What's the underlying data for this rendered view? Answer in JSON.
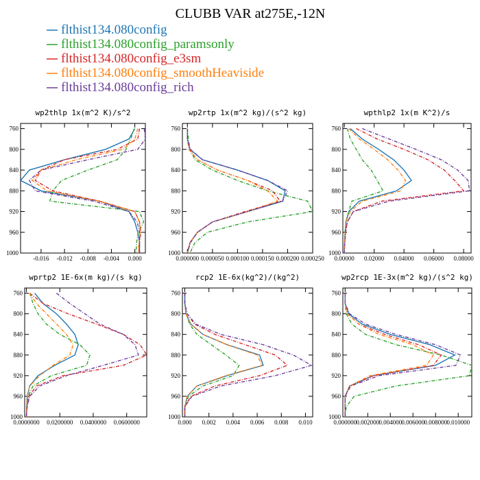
{
  "title": "CLUBB VAR at275E,-12N",
  "legend": [
    {
      "label": "flthist134.080config",
      "color": "#1f77b4",
      "dashed": false
    },
    {
      "label": "flthist134.080config_paramsonly",
      "color": "#2ca02c",
      "dashed": true
    },
    {
      "label": "flthist134.080config_e3sm",
      "color": "#d62728",
      "dashed": true
    },
    {
      "label": "flthist134.080config_smoothHeaviside",
      "color": "#ff7f0e",
      "dashed": true
    },
    {
      "label": "flthist134.080config_rich",
      "color": "#6a3d9a",
      "dashed": true
    }
  ],
  "chart_data": [
    {
      "type": "line",
      "title": "wp2thlp  1x(m^2 K)/s^2",
      "xlim": [
        -0.0195,
        0.0018
      ],
      "ylim": [
        1000,
        750
      ],
      "yticks": [
        760,
        800,
        840,
        880,
        920,
        960,
        1000
      ],
      "xticks": [
        -0.016,
        -0.012,
        -0.008,
        -0.004,
        0.0
      ],
      "xtick_labels": [
        "-0.016",
        "-0.012",
        "-0.008",
        "-0.004",
        "0.000"
      ],
      "y": [
        760,
        780,
        800,
        820,
        840,
        860,
        880,
        900,
        920,
        940,
        960,
        980,
        1000
      ],
      "series": [
        {
          "values": [
            0.0,
            -0.001,
            -0.005,
            -0.012,
            -0.018,
            -0.0195,
            -0.016,
            -0.006,
            -0.001,
            0.0,
            0.0005,
            0.0008,
            0.0008
          ]
        },
        {
          "values": [
            -0.0001,
            -0.0007,
            -0.0015,
            -0.003,
            -0.008,
            -0.0125,
            -0.014,
            -0.0145,
            0.0008,
            0.0015,
            0.0006,
            0.0003,
            0.0002
          ]
        },
        {
          "values": [
            0.0008,
            0.0005,
            -0.003,
            -0.012,
            -0.016,
            -0.017,
            -0.014,
            -0.006,
            0.0,
            0.0008,
            0.001,
            0.0008,
            0.0007
          ]
        },
        {
          "values": [
            0.0005,
            0.0,
            -0.002,
            -0.01,
            -0.016,
            -0.0175,
            -0.015,
            -0.006,
            0.0,
            0.0008,
            0.0009,
            0.0007,
            0.0006
          ]
        },
        {
          "values": [
            0.0016,
            0.0018,
            0.0005,
            -0.008,
            -0.016,
            -0.018,
            -0.017,
            -0.007,
            -0.001,
            0.0004,
            0.0008,
            0.0008,
            0.0008
          ]
        }
      ]
    },
    {
      "type": "line",
      "title": "wp2rtp  1x(m^2 kg)/(s^2 kg)",
      "xlim": [
        -1e-05,
        0.00025
      ],
      "ylim": [
        1000,
        750
      ],
      "yticks": [
        760,
        800,
        840,
        880,
        920,
        960,
        1000
      ],
      "xticks": [
        0.0,
        5e-05,
        0.0001,
        0.00015,
        0.0002,
        0.00025
      ],
      "xtick_labels": [
        "0.000000",
        "0.000050",
        "0.000100",
        "0.000150",
        "0.000200",
        "0.000250"
      ],
      "y": [
        760,
        780,
        800,
        820,
        840,
        860,
        880,
        900,
        920,
        940,
        960,
        980,
        1000
      ],
      "series": [
        {
          "values": [
            0.0,
            0.0,
            5e-06,
            3e-05,
            0.0001,
            0.00016,
            0.000195,
            0.00019,
            0.00012,
            5e-05,
            2e-05,
            5e-06,
            0.0
          ]
        },
        {
          "values": [
            0.0,
            2e-06,
            5e-06,
            1.5e-05,
            5e-05,
            0.0001,
            0.00016,
            0.00024,
            0.00025,
            0.00012,
            4e-05,
            1.5e-05,
            5e-06
          ]
        },
        {
          "values": [
            0.0,
            0.0,
            3e-06,
            2e-05,
            6e-05,
            0.00012,
            0.00017,
            0.000185,
            0.000115,
            5e-05,
            2e-05,
            5e-06,
            0.0
          ]
        },
        {
          "values": [
            0.0,
            0.0,
            4e-06,
            2e-05,
            6e-05,
            0.00012,
            0.00016,
            0.00018,
            0.00012,
            5e-05,
            2e-05,
            5e-06,
            0.0
          ]
        },
        {
          "values": [
            0.0,
            0.0,
            6e-06,
            3e-05,
            0.0001,
            0.00016,
            0.0002,
            0.00019,
            0.00012,
            5e-05,
            2e-05,
            6e-06,
            0.0
          ]
        }
      ]
    },
    {
      "type": "line",
      "title": "wpthlp2  1x(m K^2)/s",
      "xlim": [
        -0.001,
        0.085
      ],
      "ylim": [
        1000,
        750
      ],
      "yticks": [
        760,
        800,
        840,
        880,
        920,
        960,
        1000
      ],
      "xticks": [
        0.0,
        0.02,
        0.04,
        0.06,
        0.08
      ],
      "xtick_labels": [
        "0.00000",
        "0.02000",
        "0.04000",
        "0.06000",
        "0.08000"
      ],
      "y": [
        760,
        780,
        800,
        820,
        840,
        860,
        880,
        900,
        920,
        940,
        960,
        980,
        1000
      ],
      "series": [
        {
          "values": [
            0.004,
            0.012,
            0.023,
            0.033,
            0.04,
            0.045,
            0.035,
            0.01,
            0.003,
            0.001,
            0.0005,
            0.0002,
            0.0
          ]
        },
        {
          "values": [
            0.002,
            0.004,
            0.008,
            0.012,
            0.018,
            0.022,
            0.026,
            0.005,
            0.003,
            0.001,
            0.0005,
            0.0002,
            0.0
          ]
        },
        {
          "values": [
            0.008,
            0.022,
            0.04,
            0.056,
            0.067,
            0.074,
            0.08,
            0.025,
            0.006,
            0.002,
            0.0008,
            0.0003,
            0.0
          ]
        },
        {
          "values": [
            0.003,
            0.01,
            0.02,
            0.029,
            0.036,
            0.041,
            0.038,
            0.012,
            0.004,
            0.001,
            0.0005,
            0.0002,
            0.0
          ]
        },
        {
          "values": [
            0.012,
            0.03,
            0.048,
            0.065,
            0.076,
            0.083,
            0.084,
            0.03,
            0.006,
            0.002,
            0.0008,
            0.0003,
            0.0
          ]
        }
      ]
    },
    {
      "type": "line",
      "title": "wprtp2  1E-6x(m kg)/(s kg)",
      "xlim": [
        -0.001,
        0.072
      ],
      "ylim": [
        1000,
        750
      ],
      "yticks": [
        760,
        800,
        840,
        880,
        920,
        960,
        1000
      ],
      "xticks": [
        0.0,
        0.02,
        0.04,
        0.06
      ],
      "xtick_labels": [
        "0.0000000",
        "0.0200000",
        "0.0400000",
        "0.0600000"
      ],
      "y": [
        760,
        780,
        800,
        820,
        840,
        860,
        880,
        900,
        920,
        940,
        960,
        980,
        1000
      ],
      "series": [
        {
          "values": [
            0.005,
            0.01,
            0.018,
            0.024,
            0.029,
            0.031,
            0.029,
            0.017,
            0.007,
            0.002,
            0.0005,
            0.0002,
            0.0
          ]
        },
        {
          "values": [
            0.002,
            0.004,
            0.007,
            0.012,
            0.02,
            0.032,
            0.038,
            0.036,
            0.015,
            0.004,
            0.001,
            0.0003,
            0.0
          ]
        },
        {
          "values": [
            0.002,
            0.01,
            0.025,
            0.042,
            0.058,
            0.068,
            0.072,
            0.058,
            0.022,
            0.006,
            0.0015,
            0.0004,
            0.0
          ]
        },
        {
          "values": [
            0.002,
            0.006,
            0.012,
            0.018,
            0.024,
            0.028,
            0.026,
            0.016,
            0.008,
            0.002,
            0.0006,
            0.0002,
            0.0
          ]
        },
        {
          "values": [
            0.018,
            0.026,
            0.035,
            0.044,
            0.058,
            0.065,
            0.067,
            0.046,
            0.024,
            0.008,
            0.002,
            0.0005,
            0.0
          ]
        }
      ]
    },
    {
      "type": "line",
      "title": "rcp2  1E-6x(kg^2)/(kg^2)",
      "xlim": [
        -0.0002,
        0.0106
      ],
      "ylim": [
        1000,
        750
      ],
      "yticks": [
        760,
        800,
        840,
        880,
        920,
        960,
        1000
      ],
      "xticks": [
        0.0,
        0.002,
        0.004,
        0.006,
        0.008,
        0.01
      ],
      "xtick_labels": [
        "0.000",
        "0.002",
        "0.004",
        "0.006",
        "0.008",
        "0.010"
      ],
      "y": [
        760,
        780,
        800,
        820,
        840,
        860,
        880,
        900,
        920,
        940,
        960,
        980,
        1000
      ],
      "series": [
        {
          "values": [
            0.0,
            0.0,
            0.0001,
            0.0005,
            0.0015,
            0.0035,
            0.0062,
            0.0065,
            0.0035,
            0.001,
            0.0002,
            0.0,
            0.0
          ]
        },
        {
          "values": [
            0.0,
            0.0,
            0.0001,
            0.0004,
            0.001,
            0.0022,
            0.0034,
            0.0045,
            0.004,
            0.0015,
            0.0003,
            0.0,
            0.0
          ]
        },
        {
          "values": [
            0.0,
            0.0,
            0.0002,
            0.0008,
            0.0025,
            0.005,
            0.0075,
            0.0085,
            0.0062,
            0.0025,
            0.0005,
            0.0,
            0.0
          ]
        },
        {
          "values": [
            0.0,
            0.0,
            0.0001,
            0.0005,
            0.0015,
            0.0035,
            0.006,
            0.0064,
            0.0034,
            0.001,
            0.0002,
            0.0,
            0.0
          ]
        },
        {
          "values": [
            0.0,
            0.0,
            0.0002,
            0.0009,
            0.003,
            0.0065,
            0.009,
            0.0105,
            0.0075,
            0.003,
            0.0006,
            0.0,
            0.0
          ]
        }
      ]
    },
    {
      "type": "line",
      "title": "wp2rcp  1E-3x(m^2 kg)/(s^2 kg)",
      "xlim": [
        -0.0002,
        0.0112
      ],
      "ylim": [
        1000,
        750
      ],
      "yticks": [
        760,
        800,
        840,
        880,
        920,
        960,
        1000
      ],
      "xticks": [
        0.0,
        0.002,
        0.004,
        0.006,
        0.008,
        0.01
      ],
      "xtick_labels": [
        "0.000000",
        "0.002000",
        "0.004000",
        "0.006000",
        "0.008000",
        "0.010000"
      ],
      "y": [
        760,
        780,
        800,
        820,
        840,
        860,
        880,
        900,
        920,
        940,
        960,
        980,
        1000
      ],
      "series": [
        {
          "values": [
            0.0,
            0.0,
            0.0003,
            0.0015,
            0.004,
            0.0075,
            0.0097,
            0.008,
            0.0025,
            0.0004,
            0.0,
            0.0,
            0.0
          ]
        },
        {
          "values": [
            0.0,
            0.0,
            0.0001,
            0.0006,
            0.0018,
            0.0045,
            0.0085,
            0.0112,
            0.011,
            0.0045,
            0.0008,
            0.0001,
            0.0
          ]
        },
        {
          "values": [
            0.0,
            0.0,
            0.0002,
            0.0012,
            0.0035,
            0.0065,
            0.0085,
            0.0078,
            0.0025,
            0.0004,
            0.0,
            0.0,
            0.0
          ]
        },
        {
          "values": [
            0.0,
            0.0,
            0.0002,
            0.0012,
            0.003,
            0.006,
            0.0078,
            0.0072,
            0.0022,
            0.0004,
            0.0,
            0.0,
            0.0
          ]
        },
        {
          "values": [
            0.0,
            0.0,
            0.0004,
            0.0018,
            0.0045,
            0.008,
            0.0102,
            0.0098,
            0.003,
            0.0005,
            0.0,
            0.0,
            0.0
          ]
        }
      ]
    }
  ]
}
